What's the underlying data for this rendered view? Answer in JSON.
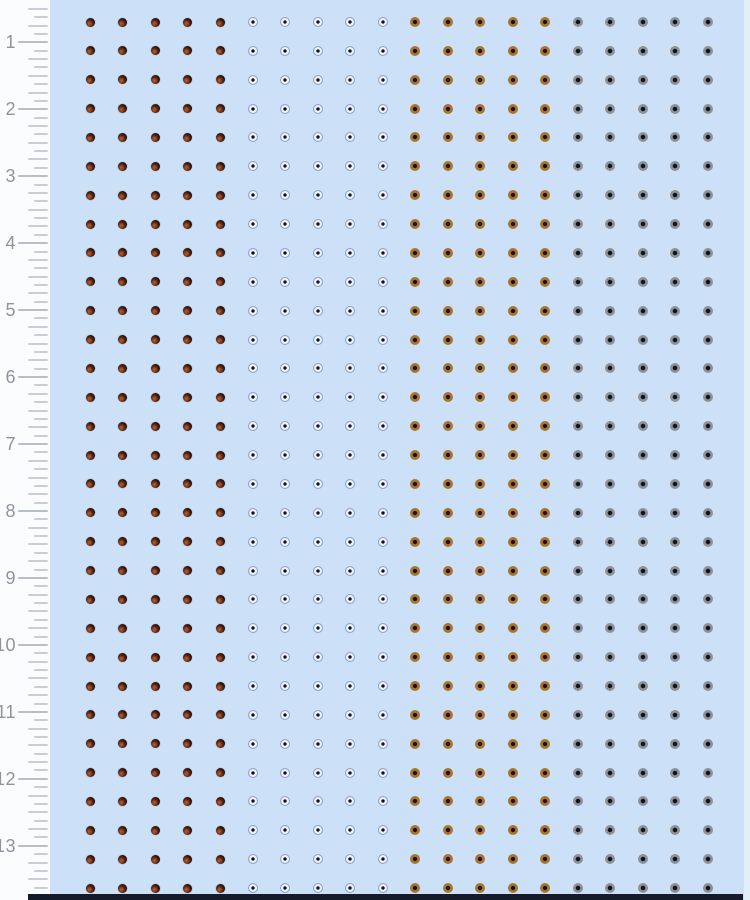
{
  "sheet": {
    "description": "decal sheet of tiny eye dots on light blue backing",
    "background_color": "#cce1f7",
    "bottom_edge_color": "#151b2b",
    "grid": {
      "rows": 31,
      "columns": 20,
      "column_groups": [
        {
          "eye_color": "brown",
          "columns": 5
        },
        {
          "eye_color": "blue",
          "columns": 5
        },
        {
          "eye_color": "amber",
          "columns": 5
        },
        {
          "eye_color": "gray",
          "columns": 5
        }
      ],
      "eye_color_hex": {
        "brown": "#6d3018",
        "blue": "#8fa2c9",
        "amber": "#a9752b",
        "gray": "#8e9197"
      }
    }
  },
  "ruler": {
    "numbers": [
      "1",
      "2",
      "3",
      "4",
      "5",
      "6",
      "7",
      "8",
      "9",
      "10",
      "11",
      "12",
      "13"
    ],
    "number_color": "#8f959d",
    "tick_color": "#c9ced6"
  }
}
